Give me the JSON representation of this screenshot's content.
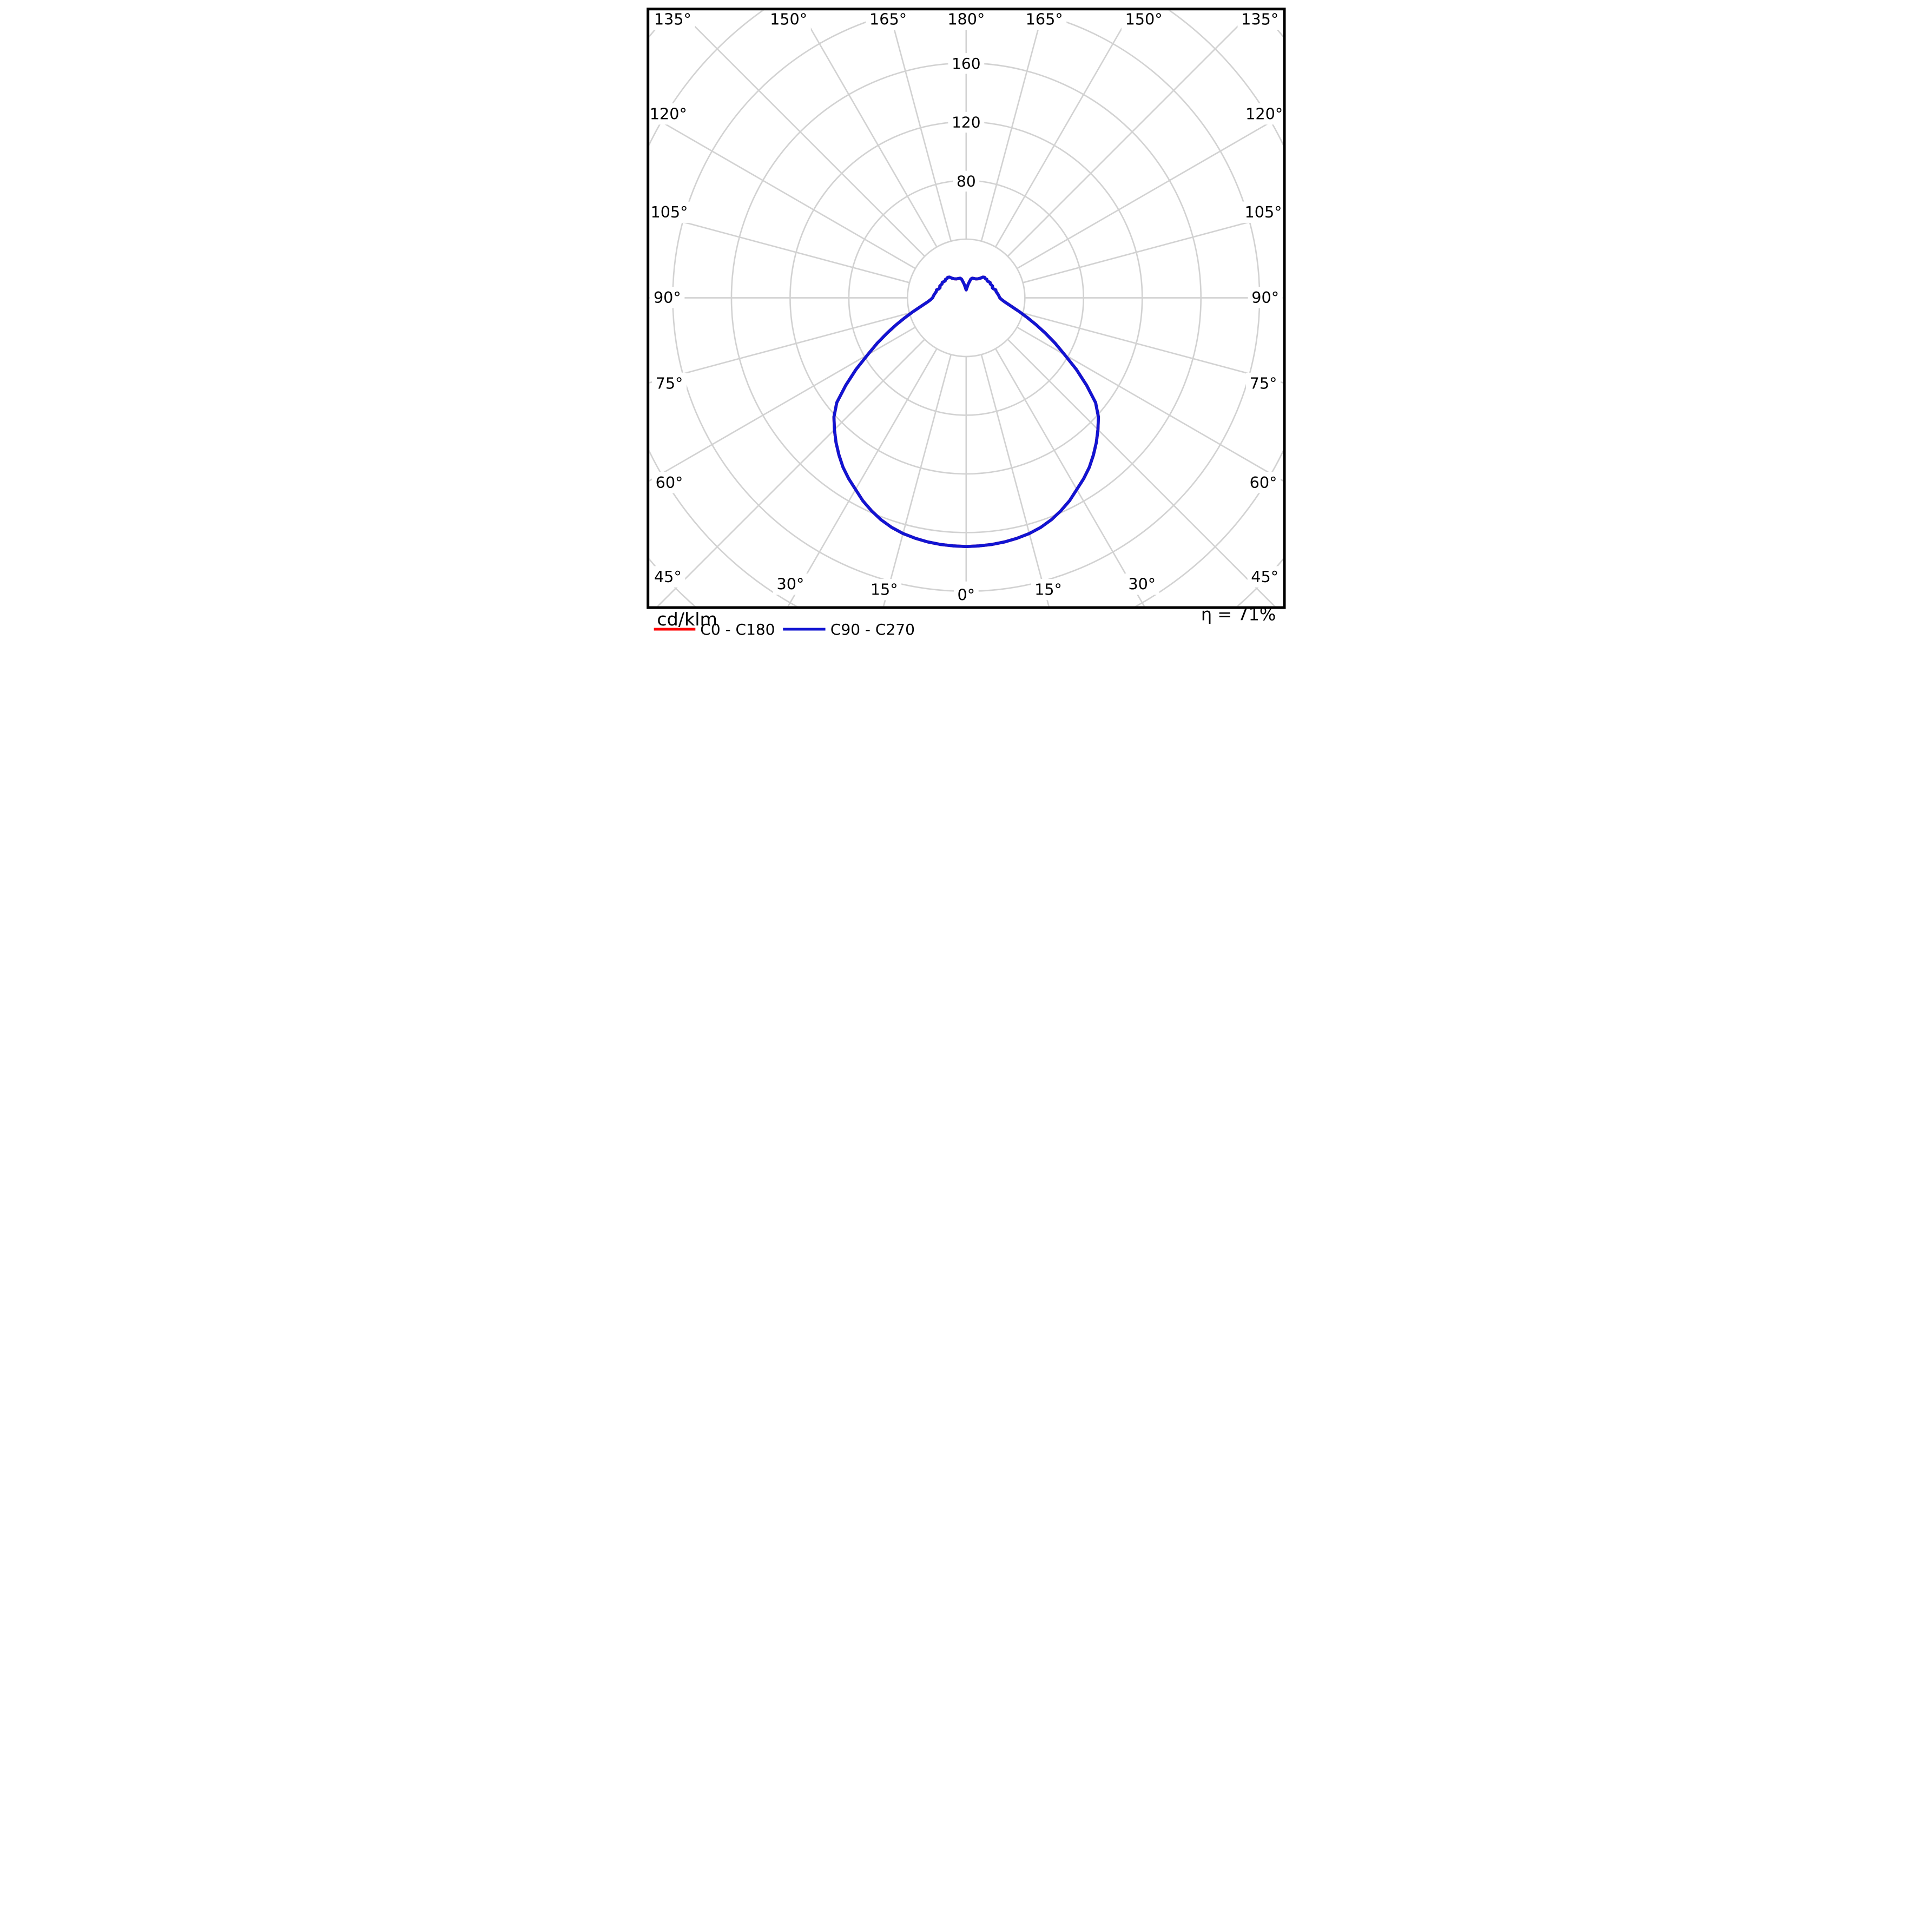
{
  "title": {
    "unit_label": "cd/klm"
  },
  "efficiency": {
    "text": "η = 71%"
  },
  "legend": [
    {
      "label": "C0 - C180",
      "color": "#ff0000"
    },
    {
      "label": "C90 - C270",
      "color": "#1114d2"
    }
  ],
  "chart_data": {
    "type": "line",
    "variant": "polar_intensity_distribution",
    "units": "cd/klm",
    "title": "cd/klm",
    "efficiency_label": "η = 71%",
    "radial_axis": {
      "min": 0,
      "max_grid": 280,
      "grid_step": 40,
      "tick_values": [
        80,
        120,
        160
      ]
    },
    "angular_axis": {
      "zero_direction": "down",
      "ray_step_deg": 15,
      "label_step_deg": 15,
      "max_deg": 180,
      "labels": [
        "0°",
        "15°",
        "30°",
        "45°",
        "60°",
        "75°",
        "90°",
        "105°",
        "120°",
        "135°",
        "150°",
        "165°",
        "180°"
      ]
    },
    "grid_color": "#d2d2d2",
    "series": [
      {
        "name": "C0 - C180",
        "color": "#ff0000"
      },
      {
        "name": "C90 - C270",
        "color": "#1114d2",
        "mirrored_symmetric": true,
        "samples_gamma_deg_vs_cd_per_klm": [
          [
            0,
            169.5
          ],
          [
            3,
            169.3
          ],
          [
            6,
            169.0
          ],
          [
            9,
            168.4
          ],
          [
            12,
            167.5
          ],
          [
            15,
            166.3
          ],
          [
            18,
            164.5
          ],
          [
            21,
            162.0
          ],
          [
            24,
            158.8
          ],
          [
            27,
            155.2
          ],
          [
            30,
            150.8
          ],
          [
            33,
            147.0
          ],
          [
            36,
            142.8
          ],
          [
            39,
            137.8
          ],
          [
            42,
            132.6
          ],
          [
            45,
            127.0
          ],
          [
            48,
            121.3
          ],
          [
            51,
            113.5
          ],
          [
            54,
            101.5
          ],
          [
            57,
            89.5
          ],
          [
            60,
            77.5
          ],
          [
            63,
            68.0
          ],
          [
            66,
            59.0
          ],
          [
            69,
            51.0
          ],
          [
            72,
            44.0
          ],
          [
            75,
            38.2
          ],
          [
            78,
            33.2
          ],
          [
            81,
            29.4
          ],
          [
            84,
            26.4
          ],
          [
            87,
            24.3
          ],
          [
            90,
            22.9
          ],
          [
            93,
            22.4
          ],
          [
            96,
            21.9
          ],
          [
            99,
            21.3
          ],
          [
            102,
            20.8
          ],
          [
            105,
            20.9
          ],
          [
            108,
            19.7
          ],
          [
            111,
            19.1
          ],
          [
            114,
            19.7
          ],
          [
            117,
            19.3
          ],
          [
            120,
            19.0
          ],
          [
            123,
            19.4
          ],
          [
            126,
            18.8
          ],
          [
            129,
            18.4
          ],
          [
            132,
            18.9
          ],
          [
            135,
            18.5
          ],
          [
            138,
            18.8
          ],
          [
            141,
            18.2
          ],
          [
            144,
            16.6
          ],
          [
            148,
            15.3
          ],
          [
            153,
            14.5
          ],
          [
            158,
            14.2
          ],
          [
            163,
            14.0
          ],
          [
            166,
            13.2
          ],
          [
            169,
            11.0
          ],
          [
            172,
            9.2
          ],
          [
            176,
            6.8
          ],
          [
            180,
            5.4
          ]
        ]
      }
    ],
    "angle_label_positions": [
      {
        "text": "135°",
        "x": 157,
        "y": 106
      },
      {
        "text": "150°",
        "x": 800,
        "y": 106
      },
      {
        "text": "165°",
        "x": 1352,
        "y": 106
      },
      {
        "text": "180°",
        "x": 1785,
        "y": 106
      },
      {
        "text": "165°",
        "x": 2218,
        "y": 106
      },
      {
        "text": "150°",
        "x": 2770,
        "y": 106
      },
      {
        "text": "135°",
        "x": 3414,
        "y": 106
      },
      {
        "text": "120°",
        "x": 133,
        "y": 632
      },
      {
        "text": "120°",
        "x": 3438,
        "y": 632
      },
      {
        "text": "105°",
        "x": 138,
        "y": 1177
      },
      {
        "text": "105°",
        "x": 3433,
        "y": 1177
      },
      {
        "text": "90°",
        "x": 127,
        "y": 1650
      },
      {
        "text": "90°",
        "x": 3444,
        "y": 1650
      },
      {
        "text": "75°",
        "x": 138,
        "y": 2126
      },
      {
        "text": "75°",
        "x": 3433,
        "y": 2126
      },
      {
        "text": "60°",
        "x": 138,
        "y": 2676
      },
      {
        "text": "60°",
        "x": 3433,
        "y": 2676
      },
      {
        "text": "45°",
        "x": 130,
        "y": 3199
      },
      {
        "text": "45°",
        "x": 3441,
        "y": 3199
      },
      {
        "text": "30°",
        "x": 810,
        "y": 3240
      },
      {
        "text": "30°",
        "x": 2760,
        "y": 3240
      },
      {
        "text": "15°",
        "x": 1330,
        "y": 3270
      },
      {
        "text": "15°",
        "x": 2240,
        "y": 3270
      },
      {
        "text": "0°",
        "x": 1785,
        "y": 3300
      }
    ],
    "radial_tick_positions": [
      {
        "text": "160",
        "x": 1785,
        "y": 352
      },
      {
        "text": "120",
        "x": 1785,
        "y": 678
      },
      {
        "text": "80",
        "x": 1785,
        "y": 1005
      }
    ]
  }
}
